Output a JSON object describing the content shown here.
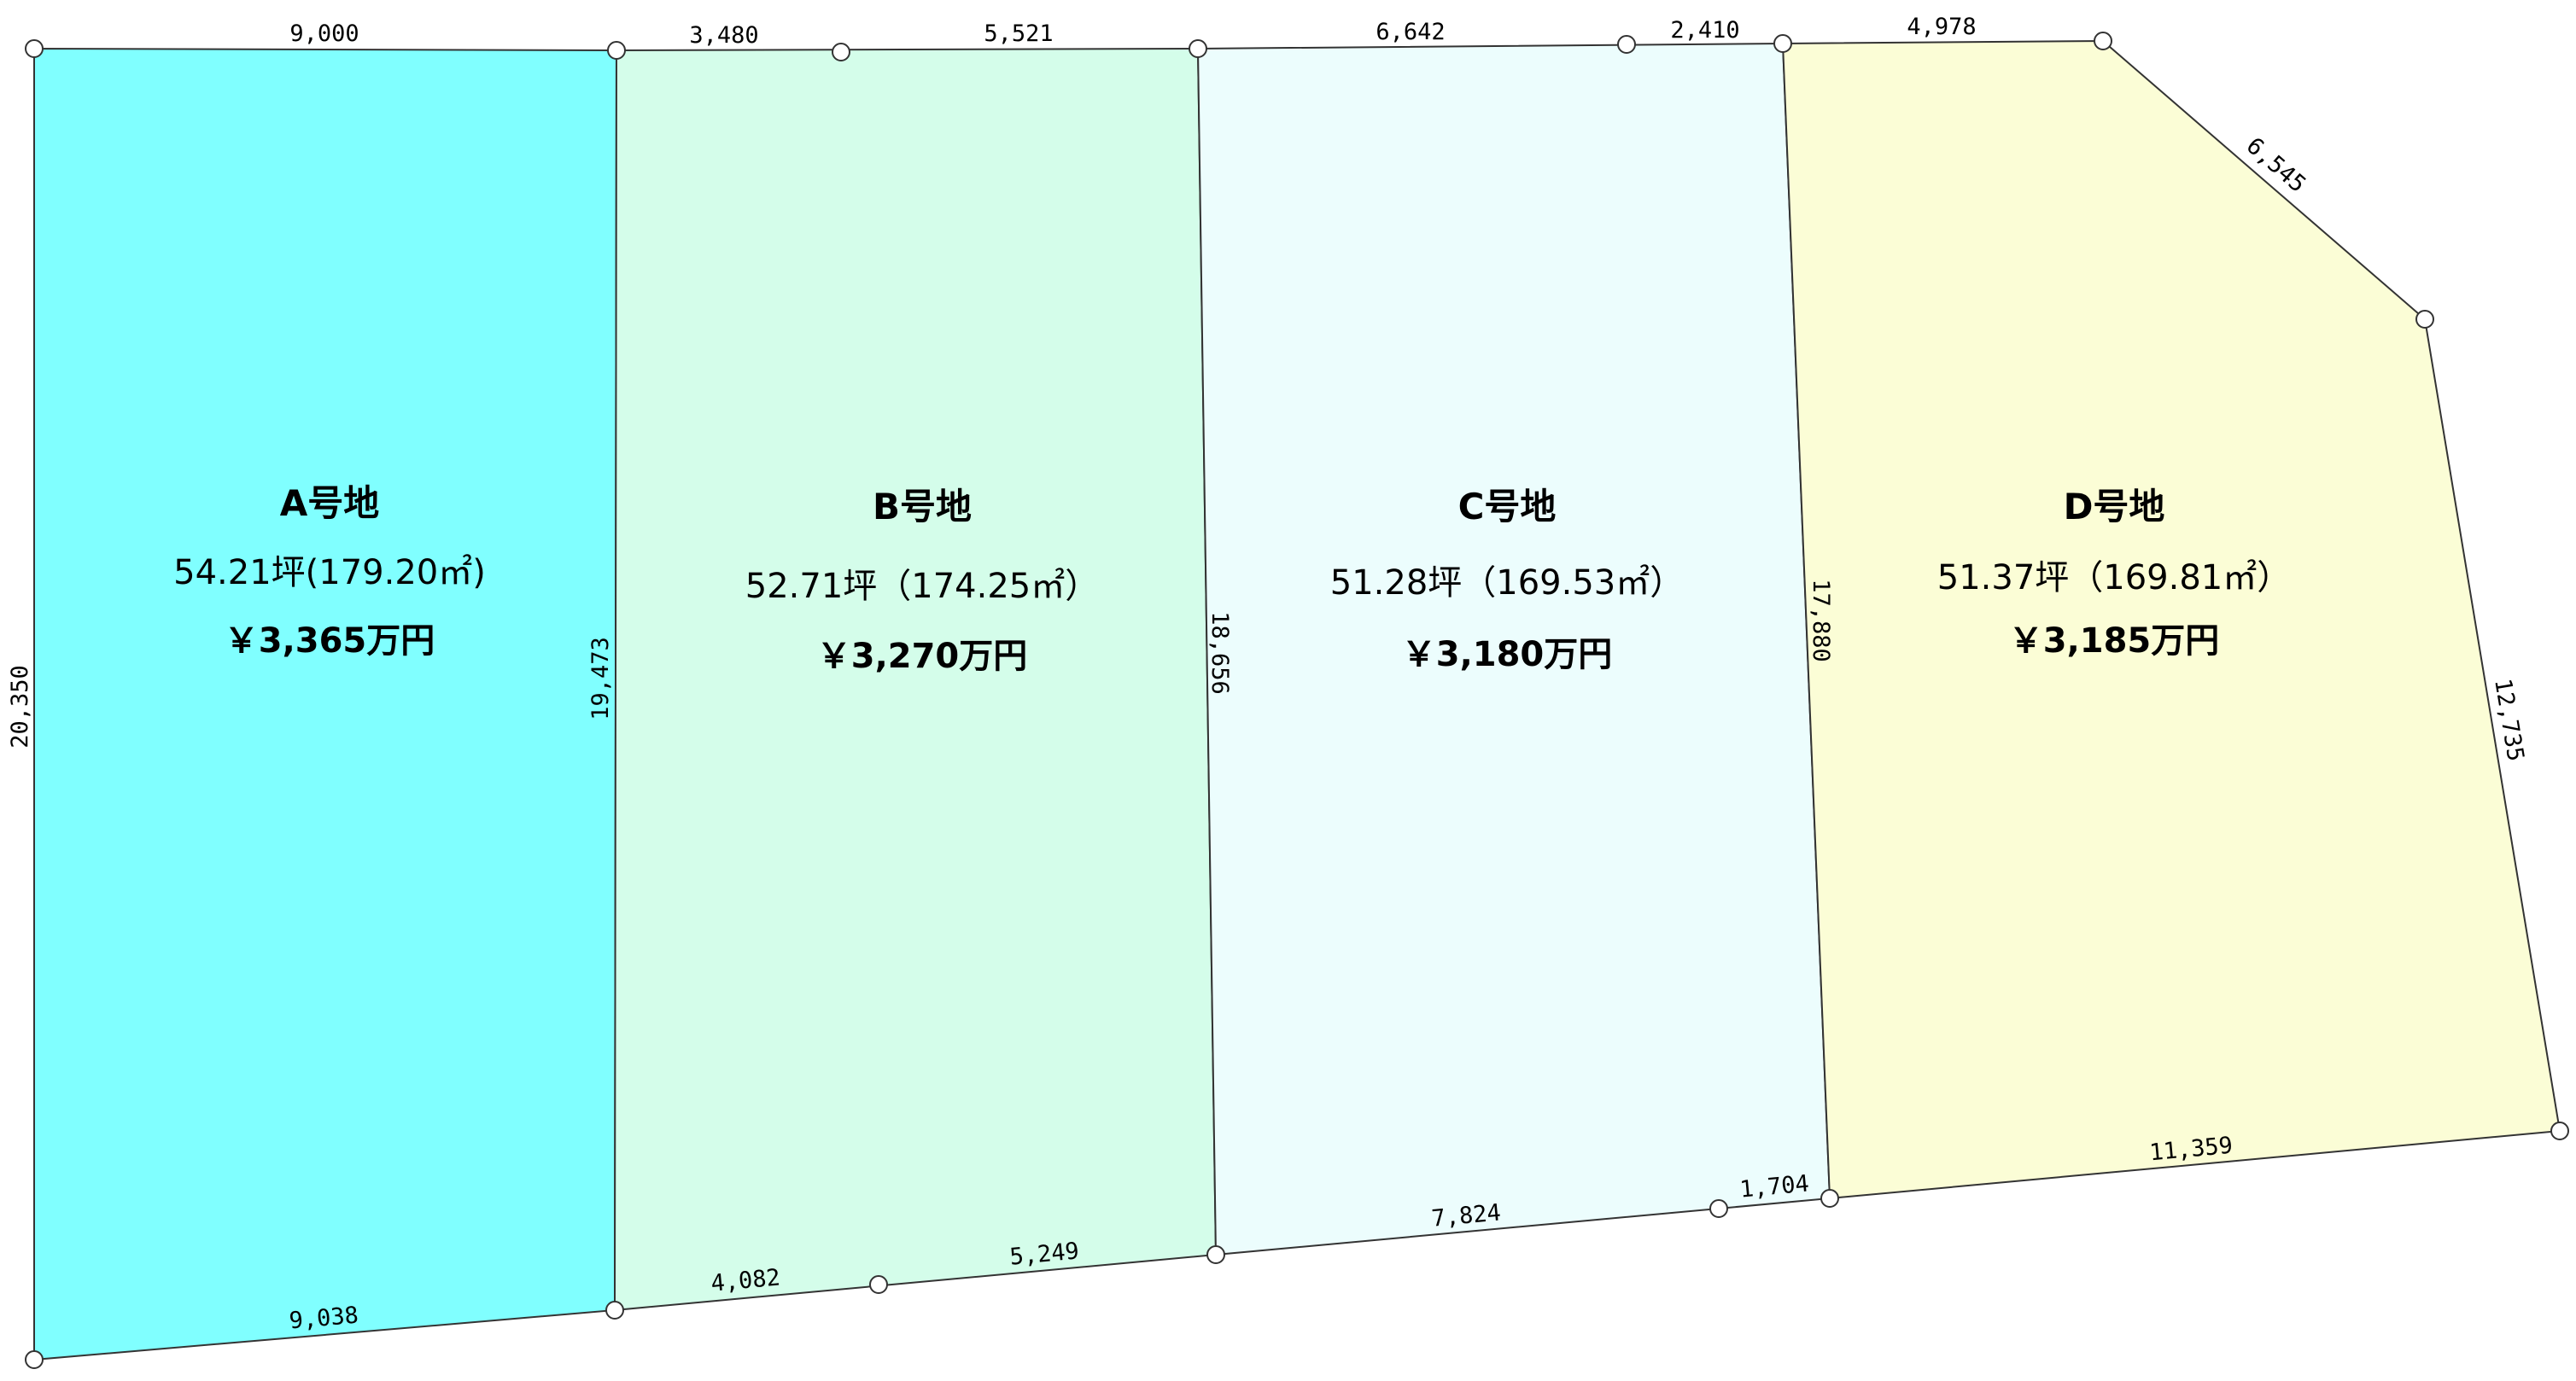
{
  "plots": [
    {
      "name": "A号地",
      "area": "54.21坪(179.20㎡)",
      "price": "￥3,365万円",
      "fill": "#80ffff"
    },
    {
      "name": "B号地",
      "area": "52.71坪（174.25㎡）",
      "price": "￥3,270万円",
      "fill": "#d4fdea"
    },
    {
      "name": "C号地",
      "area": "51.28坪（169.53㎡）",
      "price": "￥3,180万円",
      "fill": "#ecfdfd"
    },
    {
      "name": "D号地",
      "area": "51.37坪（169.81㎡）",
      "price": "￥3,185万円",
      "fill": "#fbfdd6"
    }
  ],
  "dimensions": {
    "top": [
      "9,000",
      "3,480",
      "5,521",
      "6,642",
      "2,410",
      "4,978"
    ],
    "diagonal": "6,545",
    "right": "12,735",
    "left": "20,350",
    "divider_ab": "19,473",
    "divider_bc": "18,656",
    "divider_cd": "17,880",
    "bottom": [
      "9,038",
      "4,082",
      "5,249",
      "7,824",
      "1,704",
      "11,359"
    ]
  }
}
